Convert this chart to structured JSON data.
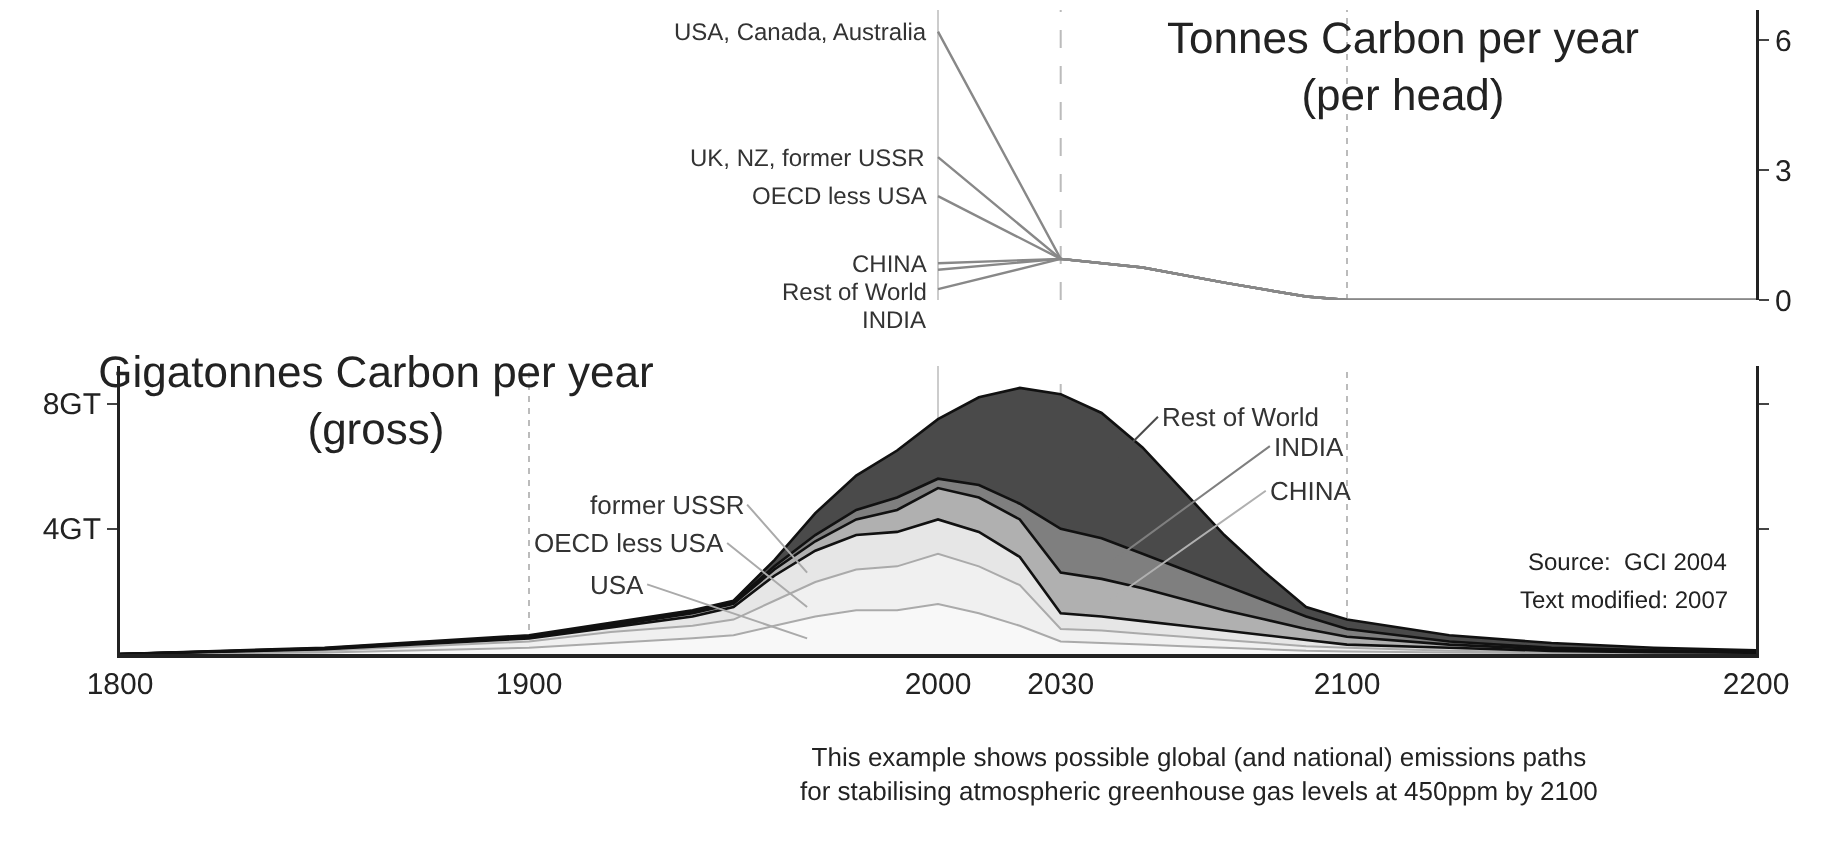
{
  "chart_data": [
    {
      "type": "line",
      "title": "Tonnes Carbon per year\n(per head)",
      "x": [
        2000,
        2030,
        2050,
        2070,
        2090,
        2100,
        2200
      ],
      "xlim": [
        1800,
        2200
      ],
      "y2lim": [
        0,
        6.7
      ],
      "y2ticks": [
        0,
        3,
        6
      ],
      "tick_labels": "y",
      "series": [
        {
          "name": "USA, Canada, Australia",
          "color": "#888888",
          "axis": "y2",
          "values": [
            6.2,
            0.95,
            0.75,
            0.4,
            0.08,
            0,
            0
          ]
        },
        {
          "name": "UK, NZ, former USSR",
          "color": "#888888",
          "axis": "y2",
          "values": [
            3.3,
            0.95,
            0.75,
            0.4,
            0.08,
            0,
            0
          ]
        },
        {
          "name": "OECD less USA",
          "color": "#888888",
          "axis": "y2",
          "values": [
            2.4,
            0.95,
            0.75,
            0.4,
            0.08,
            0,
            0
          ]
        },
        {
          "name": "CHINA",
          "color": "#888888",
          "axis": "y2",
          "values": [
            0.85,
            0.95,
            0.75,
            0.4,
            0.08,
            0,
            0
          ]
        },
        {
          "name": "Rest of World",
          "color": "#888888",
          "axis": "y2",
          "values": [
            0.7,
            0.95,
            0.75,
            0.4,
            0.08,
            0,
            0
          ]
        },
        {
          "name": "INDIA",
          "color": "#888888",
          "axis": "y2",
          "values": [
            0.25,
            0.95,
            0.75,
            0.4,
            0.08,
            0,
            0
          ]
        }
      ],
      "ref_lines": [
        {
          "axis": "x",
          "value": 2000,
          "color": "#cccccc",
          "line_style": "solid"
        },
        {
          "axis": "x",
          "value": 2030,
          "color": "#bbbbbb",
          "line_style": "dashed"
        },
        {
          "axis": "x",
          "value": 2100,
          "color": "#bbbbbb",
          "line_style": "dotted"
        }
      ]
    },
    {
      "type": "area",
      "stacked": true,
      "title": "Gigatonnes Carbon per year\n(gross)",
      "x": [
        1800,
        1850,
        1900,
        1920,
        1940,
        1950,
        1960,
        1970,
        1980,
        1990,
        2000,
        2010,
        2020,
        2030,
        2040,
        2050,
        2060,
        2070,
        2080,
        2090,
        2100,
        2125,
        2150,
        2175,
        2200
      ],
      "xlim": [
        1800,
        2200
      ],
      "xticks": [
        1800,
        1900,
        2000,
        2030,
        2100,
        2200
      ],
      "ylim": [
        0,
        9.2
      ],
      "yticks": [
        {
          "value": 4,
          "label": "4GT"
        },
        {
          "value": 8,
          "label": "8GT"
        }
      ],
      "series": [
        {
          "name": "USA",
          "color": "#f8f8f8",
          "values": [
            0,
            0.05,
            0.2,
            0.35,
            0.5,
            0.6,
            0.9,
            1.2,
            1.4,
            1.4,
            1.6,
            1.3,
            0.9,
            0.4,
            0.35,
            0.3,
            0.25,
            0.2,
            0.15,
            0.1,
            0.08,
            0.05,
            0.03,
            0.02,
            0.01
          ]
        },
        {
          "name": "OECD less USA",
          "color": "#f0f0f0",
          "values": [
            0,
            0.05,
            0.2,
            0.35,
            0.4,
            0.5,
            0.8,
            1.1,
            1.3,
            1.4,
            1.6,
            1.5,
            1.3,
            0.4,
            0.4,
            0.35,
            0.3,
            0.25,
            0.2,
            0.15,
            0.12,
            0.05,
            0.03,
            0.02,
            0.01
          ]
        },
        {
          "name": "former USSR",
          "color": "#e6e6e6",
          "values": [
            0,
            0.05,
            0.1,
            0.15,
            0.3,
            0.4,
            0.8,
            1.0,
            1.1,
            1.1,
            1.1,
            1.1,
            0.9,
            0.5,
            0.45,
            0.4,
            0.35,
            0.3,
            0.25,
            0.2,
            0.1,
            0.1,
            0.04,
            0.02,
            0.02
          ]
        },
        {
          "name": "CHINA",
          "color": "#b0b0b0",
          "values": [
            0,
            0.02,
            0.05,
            0.05,
            0.1,
            0.1,
            0.2,
            0.3,
            0.5,
            0.7,
            1.0,
            1.1,
            1.2,
            1.3,
            1.2,
            1.05,
            0.85,
            0.65,
            0.5,
            0.35,
            0.25,
            0.1,
            0.05,
            0.04,
            0.02
          ]
        },
        {
          "name": "INDIA",
          "color": "#7f7f7f",
          "values": [
            0,
            0.01,
            0.02,
            0.05,
            0.05,
            0.05,
            0.1,
            0.2,
            0.3,
            0.4,
            0.3,
            0.4,
            0.5,
            1.4,
            1.3,
            1.1,
            0.95,
            0.8,
            0.6,
            0.4,
            0.25,
            0.1,
            0.05,
            0.02,
            0.02
          ]
        },
        {
          "name": "Rest of World",
          "color": "#4a4a4a",
          "values": [
            0,
            0.02,
            0.03,
            0.05,
            0.05,
            0.05,
            0.2,
            0.7,
            1.1,
            1.5,
            1.9,
            2.8,
            3.7,
            4.3,
            4.0,
            3.4,
            2.5,
            1.6,
            0.9,
            0.3,
            0.3,
            0.2,
            0.15,
            0.08,
            0.04
          ]
        }
      ],
      "ref_lines": [
        {
          "axis": "x",
          "value": 1900,
          "color": "#bbbbbb",
          "line_style": "dotted"
        },
        {
          "axis": "x",
          "value": 2000,
          "color": "#cccccc",
          "line_style": "solid"
        },
        {
          "axis": "x",
          "value": 2030,
          "color": "#bbbbbb",
          "line_style": "dashed"
        },
        {
          "axis": "x",
          "value": 2100,
          "color": "#bbbbbb",
          "line_style": "dotted"
        }
      ],
      "annotations": [
        "Source:  GCI 2004",
        "Text modified: 2007",
        "This example shows possible global (and national) emissions paths\nfor stabilising atmospheric greenhouse gas levels at 450ppm by 2100"
      ]
    }
  ]
}
